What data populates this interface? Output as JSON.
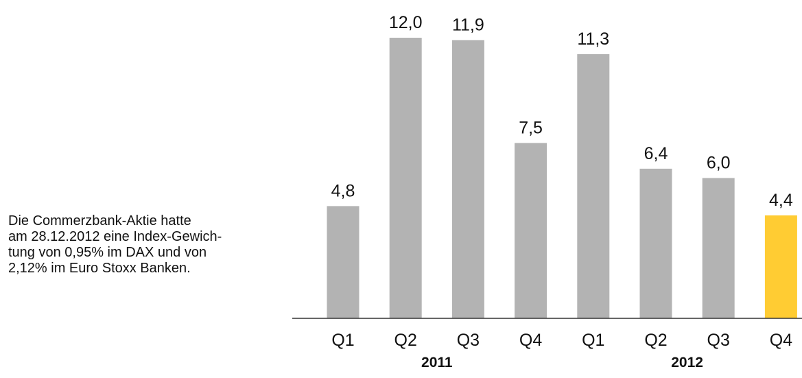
{
  "note": {
    "lines": [
      "Die Commerzbank-Aktie hatte",
      "am 28.12.2012 eine Index-Gewich-",
      "tung von 0,95% im DAX und von",
      "2,12% im Euro Stoxx Banken."
    ]
  },
  "chart_data": {
    "type": "bar",
    "title": "",
    "xlabel": "",
    "ylabel": "",
    "categories": [
      "Q1",
      "Q2",
      "Q3",
      "Q4",
      "Q1",
      "Q2",
      "Q3",
      "Q4"
    ],
    "groups": [
      {
        "label": "2011",
        "categories": [
          0,
          1,
          2,
          3
        ]
      },
      {
        "label": "2012",
        "categories": [
          4,
          5,
          6,
          7
        ]
      }
    ],
    "values": [
      4.8,
      12.0,
      11.9,
      7.5,
      11.3,
      6.4,
      6.0,
      4.4
    ],
    "value_labels": [
      "4,8",
      "12,0",
      "11,9",
      "7,5",
      "11,3",
      "6,4",
      "6,0",
      "4,4"
    ],
    "ylim": [
      0,
      12
    ],
    "grid": false,
    "legend": "none",
    "colors": {
      "default": "#b3b3b3",
      "highlight": "#ffcc33",
      "axis": "#333333",
      "text": "#111111"
    },
    "highlight_index": 7
  }
}
